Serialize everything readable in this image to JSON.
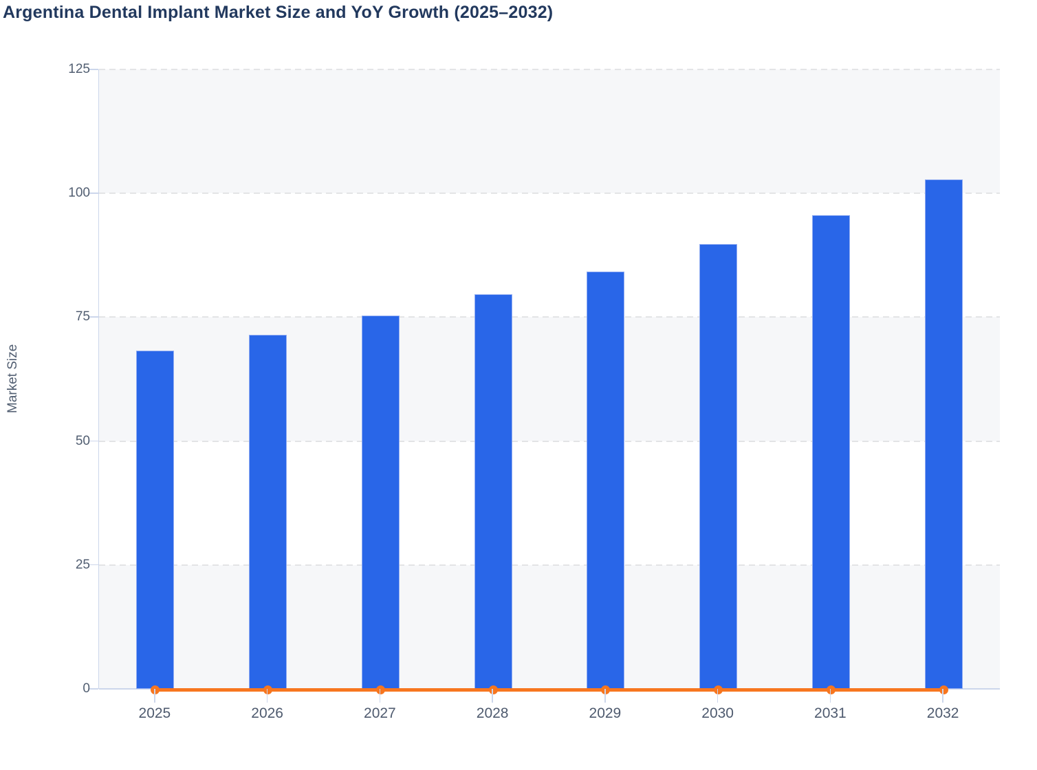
{
  "chart_data": {
    "type": "bar",
    "title": "Argentina Dental Implant Market Size and YoY Growth (2025–2032)",
    "categories": [
      "2025",
      "2026",
      "2027",
      "2028",
      "2029",
      "2030",
      "2031",
      "2032"
    ],
    "series": [
      {
        "name": "Market Size",
        "type": "bar",
        "color": "#2966e8",
        "values": [
          68.2,
          71.5,
          75.3,
          79.6,
          84.2,
          89.8,
          95.6,
          102.8
        ]
      },
      {
        "name": "YoY Growth",
        "type": "line",
        "color": "#f7761f",
        "marker": "circle",
        "values": [
          0,
          0,
          0,
          0,
          0,
          0,
          0,
          0
        ]
      }
    ],
    "xlabel": "",
    "ylabel": "Market Size",
    "ylim": [
      0,
      125
    ],
    "yticks": [
      0,
      25,
      50,
      75,
      100,
      125
    ],
    "ytick_labels": [
      "0",
      "25",
      "50",
      "75",
      "100",
      "125"
    ],
    "grid": "horizontal-dashed",
    "plot_bands": "alternating light bands between gridlines",
    "legend_position": "none",
    "colors": {
      "bar": "#2966e8",
      "line": "#f7761f",
      "band": "#f6f7f9",
      "gridline": "#e3e4e6",
      "axis_line": "#ccd6eb",
      "tick_text": "#515e71",
      "title_text": "#22395e"
    }
  }
}
